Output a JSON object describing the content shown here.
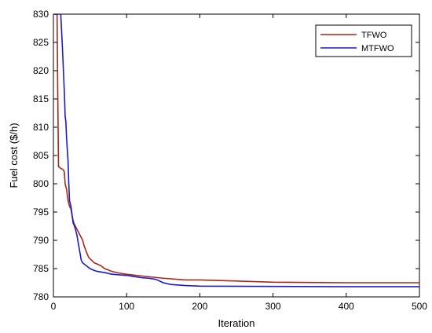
{
  "chart_data": {
    "type": "line",
    "title": "",
    "xlabel": "Iteration",
    "ylabel": "Fuel cost ($/h)",
    "xlim": [
      0,
      500
    ],
    "ylim": [
      780,
      830
    ],
    "xticks": [
      0,
      100,
      200,
      300,
      400,
      500
    ],
    "yticks": [
      780,
      785,
      790,
      795,
      800,
      805,
      810,
      815,
      820,
      825,
      830
    ],
    "grid": false,
    "legend_position": "top-right",
    "series": [
      {
        "name": "TFWO",
        "color": "#a52a1a",
        "x": [
          1,
          5,
          6,
          7,
          8,
          9,
          12,
          14,
          15,
          16,
          18,
          19,
          20,
          21,
          22,
          24,
          26,
          28,
          30,
          32,
          34,
          36,
          38,
          40,
          42,
          45,
          48,
          52,
          56,
          60,
          65,
          70,
          80,
          90,
          100,
          120,
          150,
          180,
          200,
          250,
          300,
          350,
          400,
          450,
          500
        ],
        "y": [
          830,
          830,
          815,
          803,
          803,
          802.8,
          802.6,
          802.4,
          802,
          800,
          799,
          798,
          797,
          796.5,
          796,
          795.5,
          794,
          793,
          792.5,
          792,
          791.5,
          791,
          790.5,
          790,
          789,
          788,
          787,
          786.5,
          786,
          785.8,
          785.5,
          785,
          784.5,
          784.2,
          784,
          783.7,
          783.3,
          783,
          783,
          782.8,
          782.6,
          782.55,
          782.5,
          782.5,
          782.5
        ]
      },
      {
        "name": "MTFWO",
        "color": "#1a1acd",
        "x": [
          1,
          10,
          12,
          13,
          14,
          15,
          16,
          17,
          18,
          19,
          20,
          21,
          22,
          23,
          24,
          25,
          26,
          27,
          28,
          30,
          32,
          34,
          36,
          38,
          40,
          45,
          50,
          55,
          60,
          70,
          80,
          90,
          100,
          110,
          120,
          130,
          140,
          150,
          160,
          180,
          200,
          300,
          400,
          500
        ],
        "y": [
          830,
          830,
          825,
          822,
          819,
          816,
          812,
          811,
          808,
          806,
          804,
          800,
          797,
          796.5,
          796,
          795,
          794,
          793,
          792.8,
          792,
          791,
          789.5,
          788,
          786.5,
          786,
          785.5,
          785,
          784.7,
          784.5,
          784.3,
          784,
          783.9,
          783.8,
          783.6,
          783.4,
          783.3,
          783.1,
          782.5,
          782.2,
          782,
          781.9,
          781.85,
          781.8,
          781.8
        ]
      }
    ]
  }
}
